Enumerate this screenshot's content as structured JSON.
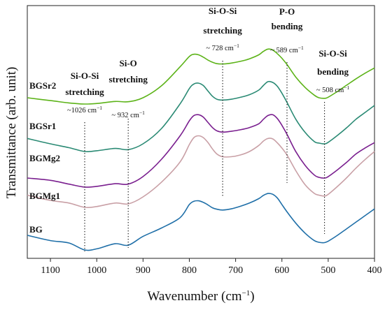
{
  "chart_data": {
    "type": "line",
    "xlabel": "Wavenumber (cm",
    "xlabel_sup": "−1",
    "xlabel_tail": ")",
    "ylabel": "Transmittance (arb. unit)",
    "x_reversed": true,
    "xlim": [
      1150,
      400
    ],
    "y_ticks_shown": false,
    "x_ticks": [
      1100,
      1000,
      900,
      800,
      700,
      600,
      500,
      400
    ],
    "x_tick_labels": [
      "1100",
      "1000",
      "900",
      "800",
      "700",
      "600",
      "500",
      "400"
    ],
    "x": [
      1150,
      1100,
      1060,
      1026,
      1000,
      960,
      932,
      900,
      860,
      820,
      800,
      790,
      780,
      770,
      760,
      750,
      740,
      728,
      710,
      690,
      670,
      650,
      640,
      630,
      620,
      610,
      600,
      589,
      570,
      550,
      530,
      520,
      508,
      500,
      480,
      460,
      440,
      420,
      400
    ],
    "series": [
      {
        "name": "BG",
        "color": "#1f6fa8",
        "values": [
          0.2,
          0.128,
          0.095,
          0.0,
          0.015,
          0.085,
          0.065,
          0.185,
          0.3,
          0.44,
          0.62,
          0.665,
          0.67,
          0.65,
          0.615,
          0.575,
          0.555,
          0.545,
          0.56,
          0.595,
          0.64,
          0.7,
          0.745,
          0.77,
          0.76,
          0.71,
          0.62,
          0.52,
          0.365,
          0.23,
          0.128,
          0.105,
          0.1,
          0.12,
          0.2,
          0.29,
          0.38,
          0.47,
          0.56
        ]
      },
      {
        "name": "BGMg1",
        "color": "#c9a0a6",
        "values": [
          0.14,
          0.08,
          0.05,
          0.0,
          0.01,
          0.05,
          0.04,
          0.12,
          0.29,
          0.52,
          0.72,
          0.8,
          0.82,
          0.8,
          0.745,
          0.67,
          0.61,
          0.58,
          0.58,
          0.6,
          0.64,
          0.71,
          0.76,
          0.79,
          0.785,
          0.74,
          0.68,
          0.6,
          0.42,
          0.26,
          0.16,
          0.14,
          0.13,
          0.15,
          0.24,
          0.34,
          0.45,
          0.55,
          0.64
        ]
      },
      {
        "name": "BGMg2",
        "color": "#7a1f8f",
        "values": [
          0.12,
          0.09,
          0.04,
          0.0,
          0.01,
          0.045,
          0.04,
          0.14,
          0.37,
          0.68,
          0.88,
          0.95,
          0.96,
          0.93,
          0.86,
          0.79,
          0.745,
          0.73,
          0.74,
          0.76,
          0.79,
          0.84,
          0.9,
          0.95,
          0.96,
          0.91,
          0.82,
          0.7,
          0.47,
          0.29,
          0.16,
          0.13,
          0.12,
          0.14,
          0.23,
          0.33,
          0.44,
          0.52,
          0.59
        ]
      },
      {
        "name": "BGSr1",
        "color": "#2a8a74",
        "values": [
          0.17,
          0.1,
          0.05,
          0.0,
          0.01,
          0.04,
          0.025,
          0.1,
          0.3,
          0.62,
          0.82,
          0.88,
          0.89,
          0.86,
          0.79,
          0.72,
          0.68,
          0.67,
          0.68,
          0.705,
          0.74,
          0.8,
          0.86,
          0.91,
          0.9,
          0.85,
          0.76,
          0.64,
          0.42,
          0.25,
          0.13,
          0.11,
          0.1,
          0.12,
          0.21,
          0.31,
          0.42,
          0.51,
          0.6
        ]
      },
      {
        "name": "BGSr2",
        "color": "#5cb318",
        "values": [
          0.11,
          0.06,
          0.02,
          0.0,
          0.01,
          0.045,
          0.04,
          0.11,
          0.32,
          0.65,
          0.83,
          0.87,
          0.86,
          0.82,
          0.77,
          0.73,
          0.705,
          0.7,
          0.715,
          0.745,
          0.79,
          0.86,
          0.92,
          0.96,
          0.945,
          0.88,
          0.8,
          0.69,
          0.47,
          0.29,
          0.155,
          0.11,
          0.1,
          0.12,
          0.22,
          0.33,
          0.44,
          0.54,
          0.63
        ]
      }
    ],
    "annotations": [
      {
        "title_lines": [
          "Si-O-Si",
          "stretching"
        ],
        "value_text": "~1026 cm",
        "sup": "−1",
        "x": 1026
      },
      {
        "title_lines": [
          "Si-O",
          "stretching"
        ],
        "value_text": "~ 932 cm",
        "sup": "−1",
        "x": 932
      },
      {
        "title_lines": [
          "Si-O-Si",
          "stretching"
        ],
        "value_text": "~ 728 cm",
        "sup": "−1",
        "x": 728
      },
      {
        "title_lines": [
          "P-O",
          "bending"
        ],
        "value_text": "~ 589 cm",
        "sup": "−1",
        "x": 589
      },
      {
        "title_lines": [
          "Si-O-Si",
          "bending"
        ],
        "value_text": "~ 508 cm",
        "sup": "−1",
        "x": 508
      }
    ]
  }
}
